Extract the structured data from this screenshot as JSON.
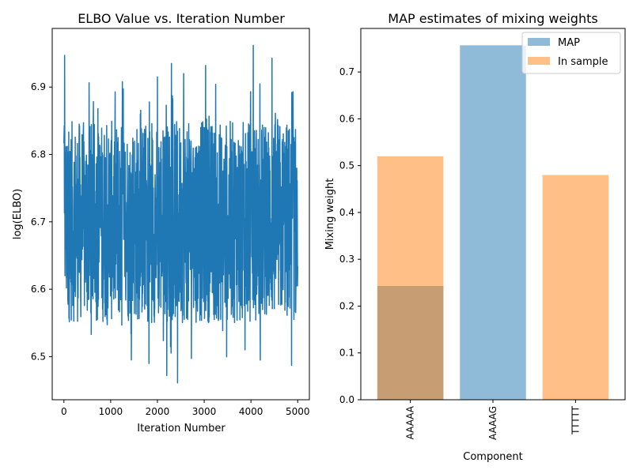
{
  "colors": {
    "line": "#1f77b4",
    "map": "#1f77b4",
    "in_sample": "#ff7f0e",
    "bar_alpha": 0.5
  },
  "chart_data": [
    {
      "type": "line",
      "title": "ELBO Value vs. Iteration Number",
      "xlabel": "Iteration Number",
      "ylabel": "log(ELBO)",
      "xlim": [
        -250,
        5250
      ],
      "ylim": [
        6.436,
        6.987
      ],
      "xticks": [
        0,
        1000,
        2000,
        3000,
        4000,
        5000
      ],
      "xtick_labels": [
        "0",
        "1000",
        "2000",
        "3000",
        "4000",
        "5000"
      ],
      "yticks": [
        6.5,
        6.6,
        6.7,
        6.8,
        6.9
      ],
      "ytick_labels": [
        "6.5",
        "6.6",
        "6.7",
        "6.8",
        "6.9"
      ],
      "grid": false,
      "series": [
        {
          "x_range": [
            0,
            5000
          ],
          "mean": 6.7,
          "noise_range": [
            6.49,
            6.96
          ],
          "band": [
            6.55,
            6.85
          ],
          "spikes_high": [
            [
              15,
              6.947
            ],
            [
              1250,
              6.908
            ],
            [
              1820,
              6.91
            ],
            [
              2000,
              6.915
            ],
            [
              2300,
              6.935
            ],
            [
              2560,
              6.92
            ],
            [
              3030,
              6.932
            ],
            [
              4050,
              6.962
            ],
            [
              4450,
              6.943
            ],
            [
              4900,
              6.893
            ]
          ],
          "spikes_low": [
            [
              1820,
              6.49
            ],
            [
              2200,
              6.472
            ],
            [
              2430,
              6.461
            ],
            [
              4870,
              6.487
            ]
          ],
          "x": [
            0,
            15,
            40,
            200,
            500,
            1000,
            1250,
            1500,
            2000,
            2200,
            2430,
            3000,
            3500,
            4050,
            4450,
            4870,
            5000
          ],
          "y": [
            6.68,
            6.947,
            6.6,
            6.82,
            6.56,
            6.72,
            6.908,
            6.55,
            6.915,
            6.472,
            6.461,
            6.932,
            6.6,
            6.962,
            6.943,
            6.487,
            6.62
          ]
        }
      ]
    },
    {
      "type": "bar",
      "title": "MAP estimates of mixing weights",
      "xlabel": "Component",
      "ylabel": "Mixing weight",
      "categories": [
        "AAAAA",
        "AAAAG",
        "TTTTT"
      ],
      "ylim": [
        0,
        0.793
      ],
      "yticks": [
        0.0,
        0.1,
        0.2,
        0.3,
        0.4,
        0.5,
        0.6,
        0.7
      ],
      "ytick_labels": [
        "0.0",
        "0.1",
        "0.2",
        "0.3",
        "0.4",
        "0.5",
        "0.6",
        "0.7"
      ],
      "legend": {
        "placement": "top-right",
        "entries": [
          "MAP",
          "In sample"
        ]
      },
      "grid": false,
      "series": [
        {
          "name": "MAP",
          "values": [
            0.243,
            0.757,
            0.0
          ]
        },
        {
          "name": "In sample",
          "values": [
            0.52,
            0.0,
            0.48
          ]
        }
      ]
    }
  ]
}
